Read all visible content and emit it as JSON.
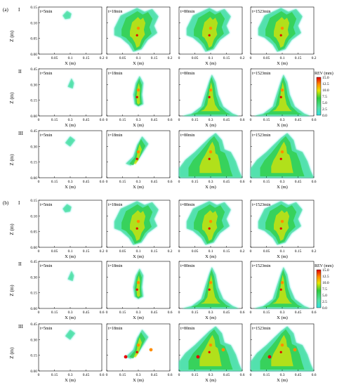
{
  "chart_data": {
    "type": "heatmap",
    "figure_parts": [
      {
        "label": "(a)",
        "rows": [
          {
            "roman": "I",
            "ylabel": "Z (m)",
            "xlabel": "X (m)",
            "xticks": [
              "0",
              "0.05",
              "0.1",
              "0.15",
              "0.2"
            ],
            "yticks": [
              "0.00",
              "0.05",
              "0.10",
              "0.15"
            ]
          },
          {
            "roman": "II",
            "ylabel": "Z (m)",
            "xlabel": "X (m)",
            "xticks": [
              "0",
              "0.15",
              "0.3",
              "0.45",
              "0.6"
            ],
            "yticks": [
              "0.00",
              "0.15",
              "0.30",
              "0.45"
            ]
          },
          {
            "roman": "III",
            "ylabel": "Z (m)",
            "xlabel": "X (m)",
            "xticks": [
              "0",
              "0.15",
              "0.3",
              "0.45",
              "0.6"
            ],
            "yticks": [
              "0.00",
              "0.15",
              "0.30",
              "0.45"
            ]
          }
        ]
      },
      {
        "label": "(b)",
        "rows": [
          {
            "roman": "I",
            "ylabel": "Z (m)",
            "xlabel": "X (m)",
            "xticks": [
              "0",
              "0.05",
              "0.1",
              "0.15",
              "0.2"
            ],
            "yticks": [
              "0.00",
              "0.05",
              "0.10",
              "0.15"
            ]
          },
          {
            "roman": "II",
            "ylabel": "Z (m)",
            "xlabel": "X (m)",
            "xticks": [
              "0",
              "0.15",
              "0.3",
              "0.45",
              "0.6"
            ],
            "yticks": [
              "0.00",
              "0.15",
              "0.30",
              "0.45"
            ]
          },
          {
            "roman": "III",
            "ylabel": "Z (m)",
            "xlabel": "X (m)",
            "xticks": [
              "0",
              "0.15",
              "0.3",
              "0.45",
              "0.6"
            ],
            "yticks": [
              "0.00",
              "0.15",
              "0.30",
              "0.45"
            ]
          }
        ]
      }
    ],
    "time_labels": [
      "t=5min",
      "t=18min",
      "t=80min",
      "t=1523min"
    ],
    "colorbar": {
      "title": "REV (mm)",
      "ticks": [
        "15.0",
        "12.5",
        "10.0",
        "7.5",
        "5.0",
        "2.5",
        "0.0"
      ],
      "range": [
        0,
        15
      ]
    },
    "colors": {
      "low": "#33e0e0",
      "mid_low": "#55e08a",
      "mid": "#2ecc40",
      "mid_high": "#e6e600",
      "high": "#ff8c00",
      "max": "#e60000"
    }
  }
}
